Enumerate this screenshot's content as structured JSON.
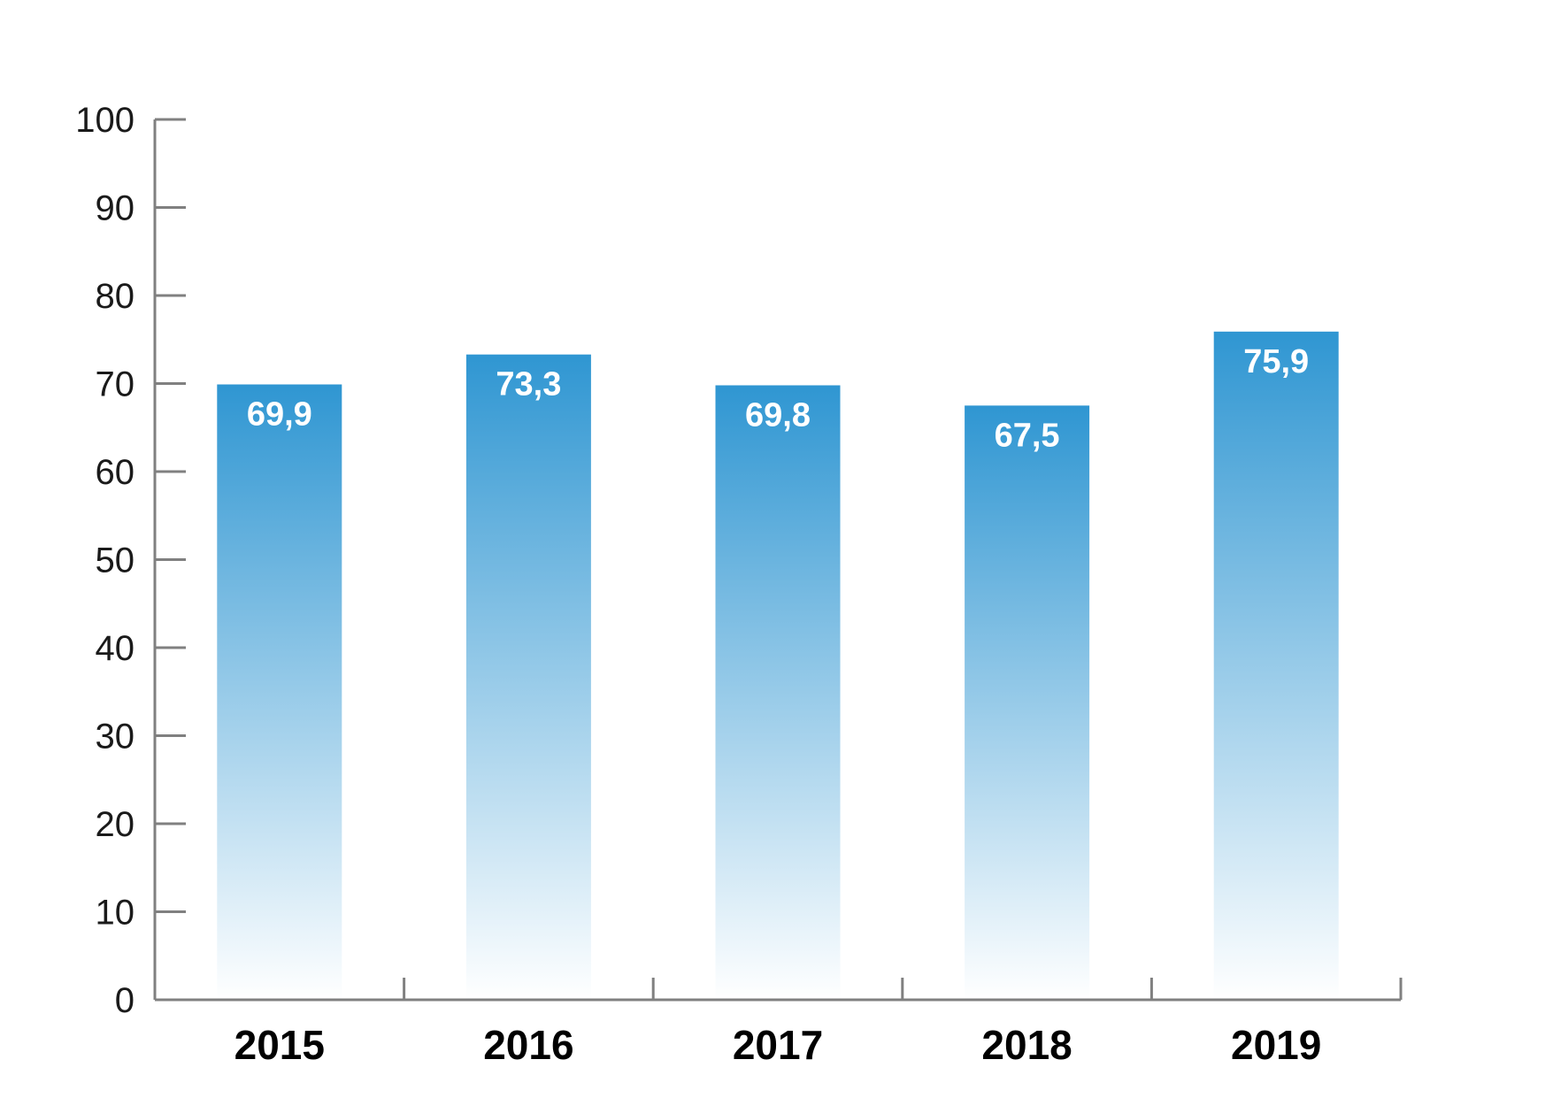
{
  "chart_data": {
    "type": "bar",
    "categories": [
      "2015",
      "2016",
      "2017",
      "2018",
      "2019"
    ],
    "values": [
      69.9,
      73.3,
      69.8,
      67.5,
      75.9
    ],
    "value_labels": [
      "69,9",
      "73,3",
      "69,8",
      "67,5",
      "75,9"
    ],
    "ylim": [
      0,
      100
    ],
    "yticks": [
      0,
      10,
      20,
      30,
      40,
      50,
      60,
      70,
      80,
      90,
      100
    ],
    "ytick_labels": [
      "0",
      "10",
      "20",
      "30",
      "40",
      "50",
      "60",
      "70",
      "80",
      "90",
      "100"
    ],
    "title": "",
    "xlabel": "",
    "ylabel": "",
    "grid": false,
    "bar_color_top": "#2f96d2",
    "bar_color_bottom": "#ffffff"
  }
}
